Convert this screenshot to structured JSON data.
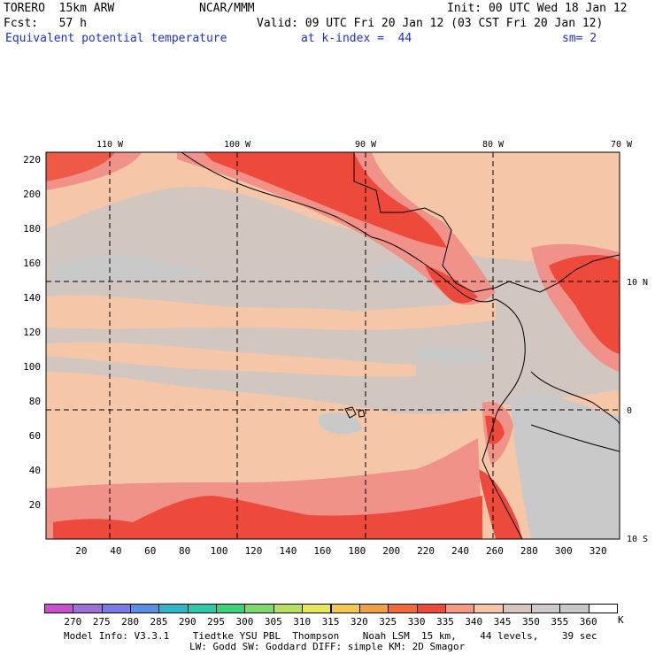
{
  "header": {
    "model": "TORERO  15km ARW",
    "org": "NCAR/MMM",
    "init": "Init: 00 UTC Wed 18 Jan 12",
    "fcst": "Fcst:   57 h",
    "valid": "Valid: 09 UTC Fri 20 Jan 12 (03 CST Fri 20 Jan 12)",
    "field": "Equivalent potential temperature",
    "level": "at k-index =  44",
    "smooth": "sm= 2"
  },
  "map": {
    "top_labels": [
      "110 W",
      "100 W",
      "90 W",
      "80 W",
      "70 W"
    ],
    "right_labels": [
      "10 N",
      "0",
      "10 S"
    ],
    "y_ticks": [
      "220",
      "200",
      "180",
      "160",
      "140",
      "120",
      "100",
      "80",
      "60",
      "40",
      "20"
    ],
    "x_ticks": [
      "20",
      "40",
      "60",
      "80",
      "100",
      "120",
      "140",
      "160",
      "180",
      "200",
      "220",
      "240",
      "260",
      "280",
      "300",
      "320"
    ]
  },
  "colorbar": {
    "levels": [
      "270",
      "275",
      "280",
      "285",
      "290",
      "295",
      "300",
      "305",
      "310",
      "315",
      "320",
      "325",
      "330",
      "335",
      "340",
      "345",
      "350",
      "355",
      "360"
    ],
    "unit": "K",
    "colors": [
      "#c94fd0",
      "#9e6fd6",
      "#7a7ae8",
      "#5a8fe6",
      "#2fb6c8",
      "#2ec9a8",
      "#3bd27a",
      "#7fd86a",
      "#b8e060",
      "#e8e65a",
      "#f2c850",
      "#f0a040",
      "#f06a3a",
      "#ee4a3c",
      "#f59a82",
      "#f5c6a8",
      "#d8c6bc",
      "#cfc9c8",
      "#c8c8c8",
      "#ffffff"
    ]
  },
  "footer": {
    "line1": "Model Info: V3.3.1    Tiedtke YSU PBL  Thompson    Noah LSM  15 km,    44 levels,    39 sec",
    "line2": "LW: Godd SW: Goddard DIFF: simple KM: 2D Smagor"
  }
}
